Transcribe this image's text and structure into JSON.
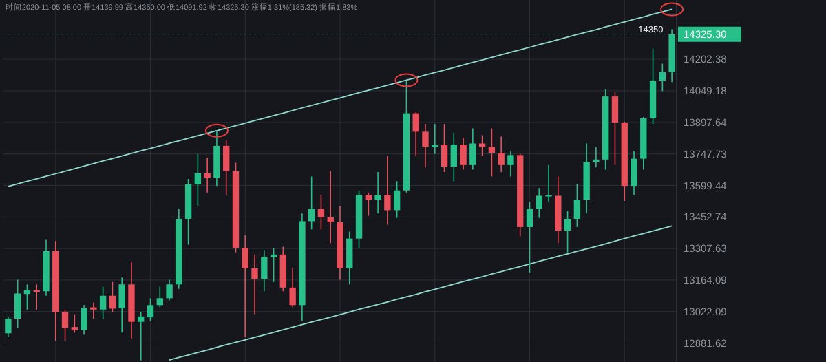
{
  "chart_data": {
    "type": "candlestick",
    "subtitle": "时间2020-11-05 08:00 开14139.99 高14350.00 低14091.92 收14325.30 涨幅1.31%(185.32) 振幅1.83%",
    "categories": [
      null,
      null,
      null,
      null,
      null,
      null,
      null,
      null,
      null,
      null,
      null,
      null,
      null,
      null,
      null,
      null,
      null,
      null,
      null,
      null,
      null,
      null,
      null,
      null,
      null,
      null,
      null,
      null,
      null,
      null,
      null,
      null,
      null,
      null,
      null,
      null,
      null,
      null,
      null,
      null,
      null,
      null,
      null,
      null,
      null,
      null,
      null,
      null,
      null,
      null,
      null,
      null,
      null,
      null,
      null,
      null,
      null,
      null,
      null,
      null,
      null,
      null,
      null,
      null,
      null,
      null,
      null,
      null,
      null,
      null,
      null
    ],
    "ohlc": [
      [
        12925,
        13000,
        12908,
        12990
      ],
      [
        12990,
        13165,
        12949,
        13103
      ],
      [
        13101,
        13144,
        13031,
        13118
      ],
      [
        13118,
        13144,
        13031,
        13110
      ],
      [
        13113,
        13347,
        13093,
        13296
      ],
      [
        13296,
        13342,
        12892,
        13020
      ],
      [
        13020,
        13031,
        12892,
        12949
      ],
      [
        12953,
        13010,
        12928,
        12939
      ],
      [
        12939,
        13051,
        12918,
        13037
      ],
      [
        13041,
        13062,
        12990,
        13031
      ],
      [
        13031,
        13134,
        12990,
        13093
      ],
      [
        13093,
        13155,
        13020,
        13035
      ],
      [
        13037,
        13175,
        12928,
        13144
      ],
      [
        13144,
        13248,
        12898,
        12976
      ],
      [
        12976,
        13020,
        12805,
        13000
      ],
      [
        12996,
        13082,
        12980,
        13051
      ],
      [
        13051,
        13134,
        13041,
        13082
      ],
      [
        13082,
        13165,
        13072,
        13144
      ],
      [
        13144,
        13490,
        13124,
        13444
      ],
      [
        13444,
        13630,
        13325,
        13604
      ],
      [
        13604,
        13748,
        13501,
        13656
      ],
      [
        13656,
        13727,
        13566,
        13636
      ],
      [
        13636,
        13858,
        13597,
        13786
      ],
      [
        13786,
        13814,
        13555,
        13667
      ],
      [
        13667,
        13706,
        13290,
        13311
      ],
      [
        13311,
        13368,
        12908,
        13217
      ],
      [
        13217,
        13280,
        13010,
        13169
      ],
      [
        13169,
        13300,
        13113,
        13269
      ],
      [
        13269,
        13311,
        13155,
        13280
      ],
      [
        13280,
        13315,
        13113,
        13130
      ],
      [
        13130,
        13217,
        13041,
        13051
      ],
      [
        13051,
        13469,
        12980,
        13433
      ],
      [
        13433,
        13641,
        13395,
        13490
      ],
      [
        13490,
        13555,
        13395,
        13452
      ],
      [
        13452,
        13667,
        13332,
        13428
      ],
      [
        13428,
        13501,
        13165,
        13217
      ],
      [
        13217,
        13385,
        13144,
        13353
      ],
      [
        13353,
        13576,
        13311,
        13555
      ],
      [
        13555,
        13566,
        13458,
        13533
      ],
      [
        13533,
        13662,
        13469,
        13555
      ],
      [
        13555,
        13738,
        13417,
        13484
      ],
      [
        13484,
        13619,
        13448,
        13576
      ],
      [
        13576,
        14099,
        13566,
        13941
      ],
      [
        13941,
        13945,
        13738,
        13853
      ],
      [
        13853,
        13890,
        13684,
        13781
      ],
      [
        13781,
        13890,
        13748,
        13792
      ],
      [
        13792,
        13890,
        13662,
        13688
      ],
      [
        13688,
        13847,
        13619,
        13792
      ],
      [
        13792,
        13825,
        13673,
        13695
      ],
      [
        13695,
        13869,
        13673,
        13797
      ],
      [
        13797,
        13836,
        13738,
        13781
      ],
      [
        13781,
        13869,
        13641,
        13753
      ],
      [
        13753,
        13830,
        13662,
        13695
      ],
      [
        13695,
        13760,
        13641,
        13742
      ],
      [
        13742,
        13748,
        13363,
        13406
      ],
      [
        13406,
        13523,
        13197,
        13490
      ],
      [
        13490,
        13587,
        13448,
        13551
      ],
      [
        13551,
        13695,
        13523,
        13553
      ],
      [
        13551,
        13641,
        13332,
        13389
      ],
      [
        13389,
        13480,
        13290,
        13444
      ],
      [
        13444,
        13604,
        13406,
        13533
      ],
      [
        13533,
        13797,
        13469,
        13710
      ],
      [
        13710,
        13781,
        13684,
        13721
      ],
      [
        13721,
        14055,
        13673,
        14022
      ],
      [
        14022,
        14044,
        13695,
        13897
      ],
      [
        13897,
        13901,
        13527,
        13597
      ],
      [
        13597,
        13760,
        13555,
        13725
      ],
      [
        13725,
        13923,
        13673,
        13917
      ],
      [
        13917,
        14255,
        13890,
        14099
      ],
      [
        14099,
        14181,
        14048,
        14141
      ],
      [
        14139.99,
        14350.0,
        14091.92,
        14325.3
      ]
    ],
    "colors": [
      "#27c08a",
      "#27c08a",
      "#27c08a",
      "#e8505b",
      "#27c08a",
      "#e8505b",
      "#e8505b",
      "#e8505b",
      "#27c08a",
      "#e8505b",
      "#27c08a",
      "#e8505b",
      "#27c08a",
      "#e8505b",
      "#27c08a",
      "#27c08a",
      "#27c08a",
      "#27c08a",
      "#27c08a",
      "#27c08a",
      "#27c08a",
      "#e8505b",
      "#27c08a",
      "#e8505b",
      "#e8505b",
      "#e8505b",
      "#e8505b",
      "#27c08a",
      "#27c08a",
      "#e8505b",
      "#e8505b",
      "#27c08a",
      "#27c08a",
      "#e8505b",
      "#e8505b",
      "#e8505b",
      "#27c08a",
      "#27c08a",
      "#e8505b",
      "#27c08a",
      "#e8505b",
      "#27c08a",
      "#27c08a",
      "#e8505b",
      "#e8505b",
      "#27c08a",
      "#e8505b",
      "#27c08a",
      "#e8505b",
      "#27c08a",
      "#e8505b",
      "#e8505b",
      "#e8505b",
      "#27c08a",
      "#e8505b",
      "#27c08a",
      "#27c08a",
      "#27c08a",
      "#e8505b",
      "#27c08a",
      "#27c08a",
      "#27c08a",
      "#27c08a",
      "#27c08a",
      "#e8505b",
      "#e8505b",
      "#27c08a",
      "#27c08a",
      "#27c08a",
      "#27c08a",
      "#27c08a"
    ],
    "series": [
      {
        "type": "line",
        "color": "#8fd8cc",
        "values": [
          13595,
          13607,
          13619,
          13630,
          13642,
          13654,
          13666,
          13678,
          13690,
          13702,
          13714,
          13726,
          13738,
          13750,
          13762,
          13774,
          13786,
          13798,
          13810,
          13822,
          13834,
          13846,
          13858,
          13870,
          13882,
          13894,
          13906,
          13918,
          13930,
          13942,
          13954,
          13967,
          13979,
          13991,
          14003,
          14015,
          14028,
          14040,
          14052,
          14064,
          14076,
          14089,
          14101,
          14113,
          14126,
          14138,
          14150,
          14162,
          14175,
          14187,
          14199,
          14212,
          14224,
          14237,
          14249,
          14261,
          14274,
          14286,
          14299,
          14311,
          14324,
          14336,
          14348,
          14361,
          14373,
          14386,
          14399,
          14411,
          14424,
          14436,
          14449
        ]
      },
      {
        "type": "line",
        "color": "#8fd8cc",
        "values": [
          null,
          null,
          null,
          null,
          null,
          null,
          null,
          null,
          null,
          null,
          null,
          null,
          null,
          null,
          null,
          null,
          null,
          12807,
          12818,
          12829,
          12840,
          12851,
          12863,
          12874,
          12885,
          12896,
          12907,
          12918,
          12929,
          12941,
          12952,
          12964,
          12975,
          12986,
          12997,
          13008,
          13020,
          13032,
          13043,
          13054,
          13065,
          13077,
          13088,
          13099,
          13111,
          13122,
          13134,
          13145,
          13157,
          13168,
          13179,
          13191,
          13202,
          13214,
          13225,
          13237,
          13249,
          13260,
          13272,
          13283,
          13295,
          13306,
          13317,
          13329,
          13341,
          13353,
          13365,
          13376,
          13388,
          13399,
          13411
        ]
      }
    ],
    "line_style": "solid",
    "log": true,
    "grid": true,
    "ylim": [
      12798,
      14495
    ],
    "yticks": [
      14202.38,
      14049.18,
      13897.64,
      13747.73,
      13599.44,
      13452.74,
      13307.63,
      13164.09,
      13022.09,
      12881.62
    ],
    "ref_lines": [
      {
        "axis": "y",
        "value": 14325.3,
        "label": "14325.30",
        "color": "#27c08a",
        "line_style": "dotted"
      }
    ],
    "annotations": [
      {
        "text": "14350",
        "y": 14350.0
      }
    ]
  }
}
